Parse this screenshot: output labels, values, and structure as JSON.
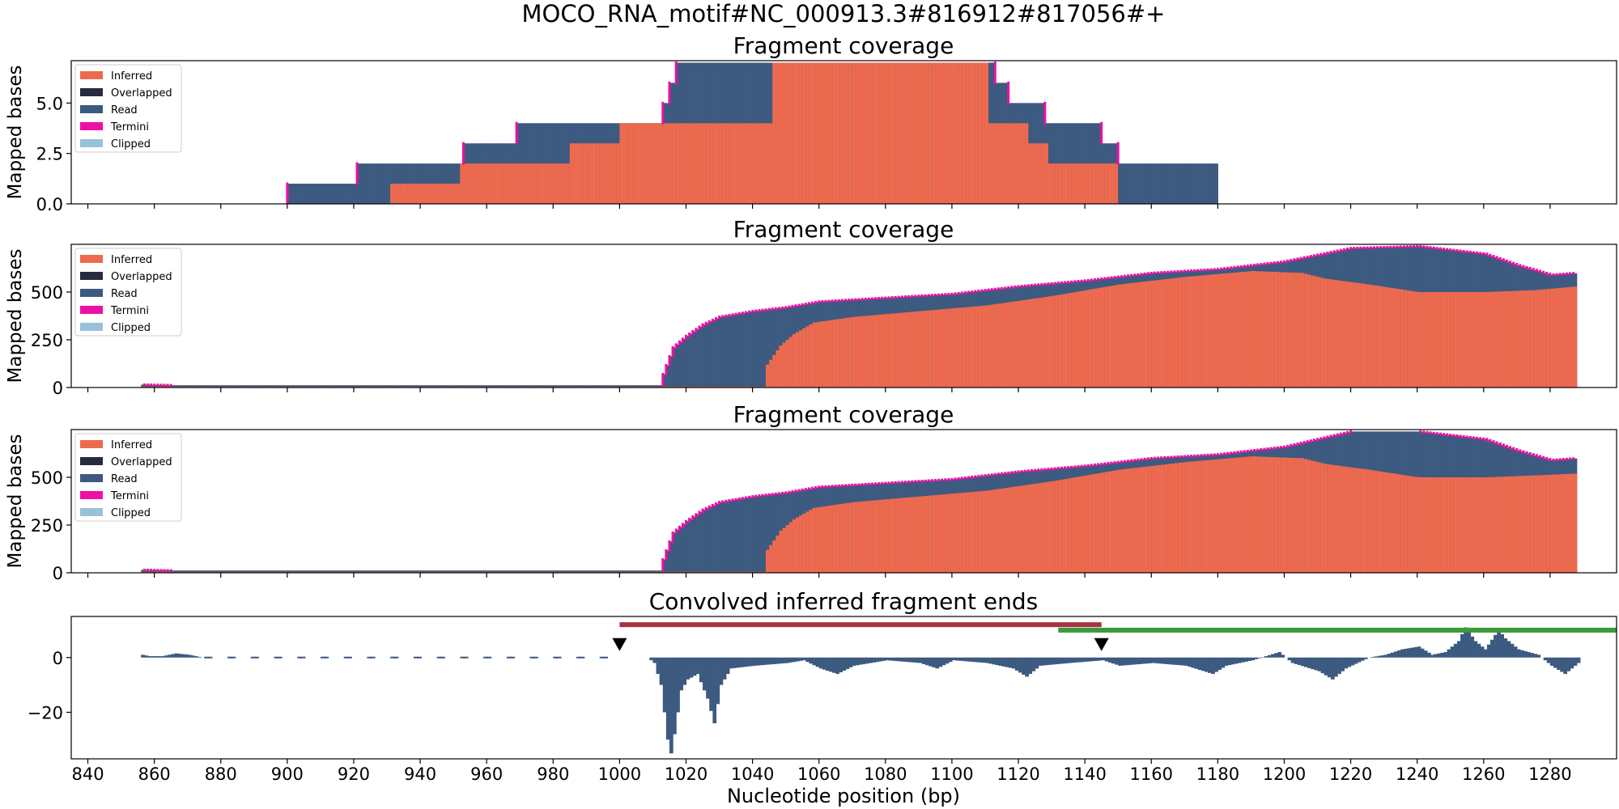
{
  "figure": {
    "suptitle": "MOCO_RNA_motif#NC_000913.3#816912#817056#+",
    "xlabel": "Nucleotide position (bp)",
    "x_ticks": [
      "840",
      "860",
      "880",
      "900",
      "920",
      "940",
      "960",
      "980",
      "1000",
      "1020",
      "1040",
      "1060",
      "1080",
      "1100",
      "1120",
      "1140",
      "1160",
      "1180",
      "1200",
      "1220",
      "1240",
      "1260",
      "1280"
    ]
  },
  "colors": {
    "inferred": "#ee6a4e",
    "overlapped": "#262b40",
    "read": "#3d5a80",
    "termini": "#ee0fa5",
    "clipped": "#98c1d9",
    "ends_bar": "#3d5a80",
    "red_span": "#a83240",
    "green_span": "#3a9a3a",
    "marker": "#000000"
  },
  "chart_data": [
    {
      "type": "area",
      "title": "Fragment coverage",
      "ylabel": "Mapped bases",
      "xlim": [
        835,
        1300
      ],
      "ylim": [
        0,
        7.1
      ],
      "y_ticks": [
        "0.0",
        "2.5",
        "5.0"
      ],
      "y_tick_values": [
        0,
        2.5,
        5
      ],
      "legend": {
        "placement": "upper-left",
        "entries": [
          "Inferred",
          "Overlapped",
          "Read",
          "Termini",
          "Clipped"
        ]
      },
      "series": [
        {
          "name": "Read",
          "steps": [
            [
              900,
              1
            ],
            [
              921,
              2
            ],
            [
              953,
              3
            ],
            [
              969,
              4
            ],
            [
              1013,
              5
            ],
            [
              1015,
              6
            ],
            [
              1017,
              7
            ],
            [
              1113,
              6
            ],
            [
              1117,
              5
            ],
            [
              1128,
              4
            ],
            [
              1145,
              3
            ],
            [
              1150,
              2
            ],
            [
              1180,
              0
            ]
          ]
        },
        {
          "name": "Inferred",
          "steps": [
            [
              931,
              1
            ],
            [
              952,
              2
            ],
            [
              985,
              3
            ],
            [
              1000,
              4
            ],
            [
              1046,
              7
            ],
            [
              1111,
              4
            ],
            [
              1123,
              3
            ],
            [
              1129,
              2
            ],
            [
              1150,
              0
            ]
          ]
        }
      ]
    },
    {
      "type": "area",
      "title": "Fragment coverage",
      "ylabel": "Mapped bases",
      "xlim": [
        835,
        1300
      ],
      "ylim": [
        0,
        750
      ],
      "y_ticks": [
        "0",
        "250",
        "500"
      ],
      "y_tick_values": [
        0,
        250,
        500
      ],
      "legend": {
        "placement": "upper-left",
        "entries": [
          "Inferred",
          "Overlapped",
          "Read",
          "Termini",
          "Clipped"
        ]
      },
      "series": [
        {
          "name": "Read",
          "points": [
            [
              856,
              15
            ],
            [
              865,
              12
            ],
            [
              1012,
              12
            ],
            [
              1013,
              70
            ],
            [
              1016,
              210
            ],
            [
              1020,
              270
            ],
            [
              1025,
              330
            ],
            [
              1030,
              370
            ],
            [
              1040,
              400
            ],
            [
              1050,
              420
            ],
            [
              1060,
              450
            ],
            [
              1080,
              470
            ],
            [
              1100,
              490
            ],
            [
              1120,
              530
            ],
            [
              1140,
              560
            ],
            [
              1160,
              600
            ],
            [
              1180,
              620
            ],
            [
              1200,
              660
            ],
            [
              1220,
              730
            ],
            [
              1240,
              740
            ],
            [
              1250,
              720
            ],
            [
              1260,
              700
            ],
            [
              1270,
              640
            ],
            [
              1280,
              590
            ],
            [
              1288,
              600
            ]
          ]
        },
        {
          "name": "Inferred",
          "points": [
            [
              856,
              5
            ],
            [
              1043,
              5
            ],
            [
              1044,
              120
            ],
            [
              1048,
              220
            ],
            [
              1052,
              280
            ],
            [
              1058,
              340
            ],
            [
              1070,
              370
            ],
            [
              1090,
              400
            ],
            [
              1110,
              430
            ],
            [
              1130,
              480
            ],
            [
              1150,
              540
            ],
            [
              1170,
              580
            ],
            [
              1190,
              610
            ],
            [
              1205,
              600
            ],
            [
              1212,
              570
            ],
            [
              1225,
              540
            ],
            [
              1240,
              500
            ],
            [
              1260,
              500
            ],
            [
              1275,
              510
            ],
            [
              1288,
              530
            ]
          ]
        }
      ]
    },
    {
      "type": "area",
      "title": "Fragment coverage",
      "ylabel": "Mapped bases",
      "xlim": [
        835,
        1300
      ],
      "ylim": [
        0,
        750
      ],
      "y_ticks": [
        "0",
        "250",
        "500"
      ],
      "y_tick_values": [
        0,
        250,
        500
      ],
      "legend": {
        "placement": "upper-left",
        "entries": [
          "Inferred",
          "Overlapped",
          "Read",
          "Termini",
          "Clipped"
        ]
      },
      "series": [
        {
          "name": "Read",
          "points": [
            [
              856,
              15
            ],
            [
              865,
              12
            ],
            [
              1012,
              12
            ],
            [
              1013,
              70
            ],
            [
              1016,
              210
            ],
            [
              1020,
              270
            ],
            [
              1025,
              330
            ],
            [
              1030,
              370
            ],
            [
              1040,
              400
            ],
            [
              1050,
              420
            ],
            [
              1060,
              450
            ],
            [
              1080,
              470
            ],
            [
              1100,
              490
            ],
            [
              1120,
              530
            ],
            [
              1140,
              560
            ],
            [
              1160,
              600
            ],
            [
              1180,
              620
            ],
            [
              1200,
              660
            ],
            [
              1220,
              740
            ],
            [
              1240,
              740
            ],
            [
              1250,
              720
            ],
            [
              1260,
              700
            ],
            [
              1270,
              640
            ],
            [
              1280,
              590
            ],
            [
              1288,
              600
            ]
          ]
        },
        {
          "name": "Inferred",
          "points": [
            [
              856,
              5
            ],
            [
              1043,
              5
            ],
            [
              1044,
              120
            ],
            [
              1048,
              220
            ],
            [
              1052,
              280
            ],
            [
              1058,
              340
            ],
            [
              1070,
              370
            ],
            [
              1090,
              400
            ],
            [
              1110,
              430
            ],
            [
              1130,
              480
            ],
            [
              1150,
              540
            ],
            [
              1170,
              580
            ],
            [
              1190,
              610
            ],
            [
              1205,
              600
            ],
            [
              1212,
              570
            ],
            [
              1225,
              540
            ],
            [
              1240,
              500
            ],
            [
              1260,
              500
            ],
            [
              1275,
              510
            ],
            [
              1288,
              520
            ]
          ]
        }
      ]
    },
    {
      "type": "bar",
      "title": "Convolved inferred fragment ends",
      "xlim": [
        835,
        1300
      ],
      "ylim": [
        -37,
        15
      ],
      "y_ticks": [
        "0",
        "−20"
      ],
      "y_tick_values": [
        0,
        -20
      ],
      "spans": [
        {
          "name": "red",
          "x0": 1000,
          "x1": 1145,
          "y": 12
        },
        {
          "name": "green",
          "x0": 1132,
          "x1": 1300,
          "y": 10
        }
      ],
      "markers": [
        {
          "x": 1000,
          "y": 0
        },
        {
          "x": 1145,
          "y": 0
        }
      ],
      "bar_points": [
        [
          856,
          1
        ],
        [
          858,
          0.5
        ],
        [
          862,
          0.5
        ],
        [
          866,
          1.5
        ],
        [
          870,
          1
        ],
        [
          874,
          0
        ],
        [
          1000,
          0
        ],
        [
          1004,
          0
        ],
        [
          1008,
          0
        ],
        [
          1010,
          -2
        ],
        [
          1012,
          -10
        ],
        [
          1013,
          -20
        ],
        [
          1014,
          -30
        ],
        [
          1015,
          -35
        ],
        [
          1016,
          -28
        ],
        [
          1018,
          -12
        ],
        [
          1020,
          -8
        ],
        [
          1023,
          -6
        ],
        [
          1026,
          -15
        ],
        [
          1028,
          -24
        ],
        [
          1030,
          -10
        ],
        [
          1033,
          -4
        ],
        [
          1040,
          -3
        ],
        [
          1050,
          -2
        ],
        [
          1055,
          -1
        ],
        [
          1060,
          -4
        ],
        [
          1065,
          -6
        ],
        [
          1070,
          -3
        ],
        [
          1080,
          -1
        ],
        [
          1090,
          -2
        ],
        [
          1095,
          -4
        ],
        [
          1100,
          -1
        ],
        [
          1110,
          -2
        ],
        [
          1118,
          -4
        ],
        [
          1122,
          -7
        ],
        [
          1126,
          -3
        ],
        [
          1135,
          -2
        ],
        [
          1145,
          -1
        ],
        [
          1150,
          -3
        ],
        [
          1160,
          -2
        ],
        [
          1170,
          -3
        ],
        [
          1178,
          -6
        ],
        [
          1182,
          -3
        ],
        [
          1190,
          -1
        ],
        [
          1198,
          2
        ],
        [
          1202,
          -2
        ],
        [
          1210,
          -5
        ],
        [
          1214,
          -8
        ],
        [
          1218,
          -4
        ],
        [
          1225,
          0
        ],
        [
          1230,
          1
        ],
        [
          1235,
          3
        ],
        [
          1240,
          4
        ],
        [
          1244,
          1
        ],
        [
          1248,
          2
        ],
        [
          1252,
          6
        ],
        [
          1254,
          11
        ],
        [
          1257,
          6
        ],
        [
          1260,
          3
        ],
        [
          1264,
          10
        ],
        [
          1266,
          7
        ],
        [
          1270,
          3
        ],
        [
          1276,
          1
        ],
        [
          1280,
          -3
        ],
        [
          1284,
          -6
        ],
        [
          1288,
          -2
        ]
      ]
    }
  ]
}
